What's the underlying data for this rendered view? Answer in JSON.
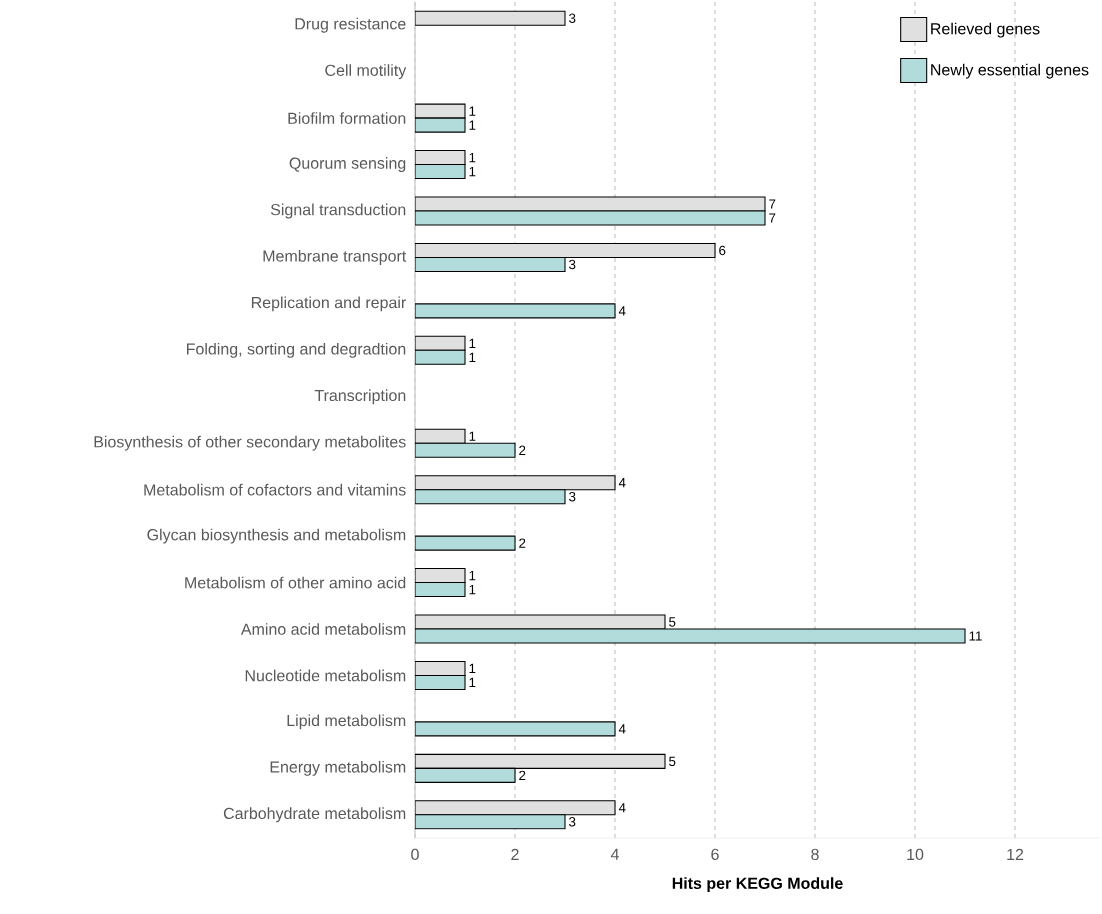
{
  "chart_data": {
    "type": "bar",
    "orientation": "horizontal",
    "xlabel": "Hits per KEGG Module",
    "categories": [
      "Drug resistance",
      "Cell motility",
      "Biofilm formation",
      "Quorum sensing",
      "Signal transduction",
      "Membrane transport",
      "Replication and repair",
      "Folding, sorting and degradtion",
      "Transcription",
      "Biosynthesis of other secondary metabolites",
      "Metabolism of cofactors and vitamins",
      "Glycan biosynthesis and metabolism",
      "Metabolism of other amino acid",
      "Amino acid metabolism",
      "Nucleotide metabolism",
      "Lipid metabolism",
      "Energy metabolism",
      "Carbohydrate metabolism"
    ],
    "series": [
      {
        "name": "Relieved genes",
        "color": "#e0e0e0",
        "values": [
          3,
          null,
          1,
          1,
          7,
          6,
          null,
          1,
          null,
          1,
          4,
          null,
          1,
          5,
          1,
          null,
          5,
          4
        ]
      },
      {
        "name": "Newly essential genes",
        "color": "#b2dcdb",
        "values": [
          null,
          null,
          1,
          1,
          7,
          3,
          4,
          1,
          null,
          2,
          3,
          2,
          1,
          11,
          1,
          4,
          2,
          3
        ]
      }
    ],
    "xlim": [
      0,
      13.7
    ],
    "xticks": [
      0,
      2,
      4,
      6,
      8,
      10,
      12
    ],
    "grid": "x",
    "legend": "top right",
    "data_labels": true
  }
}
